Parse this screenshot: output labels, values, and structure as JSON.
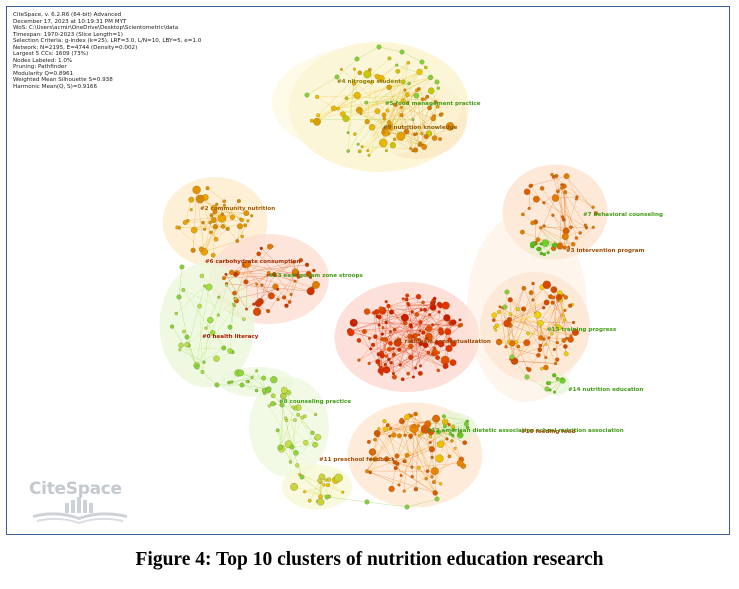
{
  "info_lines": [
    "CiteSpace, v. 6.2.R6 (64-bit) Advanced",
    "December 17, 2023 at 10:19:31 PM MYT",
    "WoS: C:\\Users\\acmir\\OneDrive\\Desktop\\Scientometric\\data",
    "Timespan: 1970-2023 (Slice Length=1)",
    "Selection Criteria: g-index (k=25), LRF=3.0, L/N=10, LBY=5, e=1.0",
    "Network: N=2195, E=4744 (Density=0.002)",
    "Largest 5 CCs: 1609 (73%)",
    "Nodes Labeled: 1.0%",
    "Pruning: Pathfinder",
    "Modularity Q=0.8961",
    "Weighted Mean Silhouette S=0.938",
    "Harmonic Mean(Q, S)=0.9166"
  ],
  "cluster_labels": [
    {
      "text": "#4 nitrogen student",
      "color": "#8c7a00"
    },
    {
      "text": "#5 food management practice",
      "color": "#3f9b13"
    },
    {
      "text": "#9 nutrition knowledge",
      "color": "#8c5a00"
    },
    {
      "text": "#2 community nutrition",
      "color": "#a05a00"
    },
    {
      "text": "#6 carbohydrate consumption",
      "color": "#a52a00"
    },
    {
      "text": "#13 east go jam zone stroops",
      "color": "#3f9b13"
    },
    {
      "text": "#0 health literacy",
      "color": "#b01800"
    },
    {
      "text": "#1 rationale conceptualization",
      "color": "#a04800"
    },
    {
      "text": "#7 behavioral counseling",
      "color": "#3f9b13"
    },
    {
      "text": "#3 intervention program",
      "color": "#a04800"
    },
    {
      "text": "#15 training progress",
      "color": "#3f9b13"
    },
    {
      "text": "#14 nutrition education",
      "color": "#3f9b13"
    },
    {
      "text": "#8 counseling practice",
      "color": "#3f9b13"
    },
    {
      "text": "#11 preschool feedback",
      "color": "#a04800"
    },
    {
      "text": "#12 american dietetic association school nutrition association",
      "color": "#3f9b13"
    },
    {
      "text": "#10 feeding food",
      "color": "#a04800"
    }
  ],
  "logo_text": "CiteSpace",
  "caption": "Figure 4: Top 10 clusters of nutrition education research"
}
